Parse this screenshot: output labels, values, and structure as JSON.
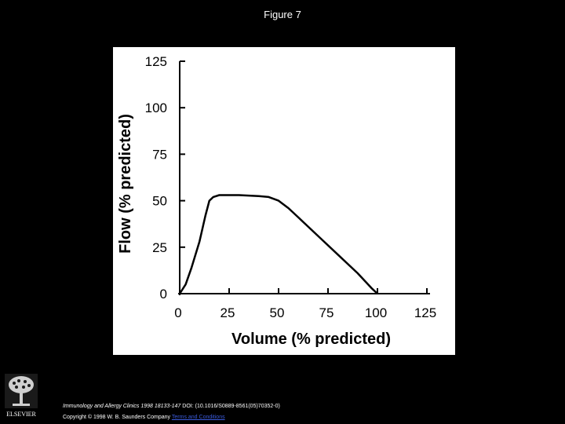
{
  "slide": {
    "title": "Figure 7"
  },
  "footer": {
    "publisher": "ELSEVIER",
    "journal": "Immunology and Allergy Clinics 1998 18133-147",
    "doi": "DOI: (10.1016/S0889-8561(05)70352-0)",
    "copyright": "Copyright © 1998 W. B. Saunders Company",
    "terms_link": "Terms and Conditions"
  },
  "colors": {
    "background": "#000000",
    "panel": "#ffffff",
    "line": "#000000",
    "footer_text": "#ffffff",
    "link": "#3b5bdb"
  },
  "chart_data": {
    "type": "line",
    "title": "",
    "xlabel": "Volume (% predicted)",
    "ylabel": "Flow (% predicted)",
    "xlim": [
      0,
      125
    ],
    "ylim": [
      0,
      125
    ],
    "x_ticks": [
      "0",
      "25",
      "50",
      "75",
      "100",
      "125"
    ],
    "y_ticks": [
      "0",
      "25",
      "50",
      "75",
      "100",
      "125"
    ],
    "grid": false,
    "series": [
      {
        "name": "",
        "x": [
          0,
          3,
          6,
          10,
          13,
          15,
          17,
          20,
          30,
          40,
          45,
          50,
          55,
          60,
          70,
          80,
          90,
          97,
          100
        ],
        "y": [
          0,
          5,
          14,
          28,
          42,
          50,
          52,
          53,
          53,
          52.5,
          52,
          50,
          46,
          41,
          31,
          21,
          11,
          3,
          0
        ]
      }
    ]
  }
}
